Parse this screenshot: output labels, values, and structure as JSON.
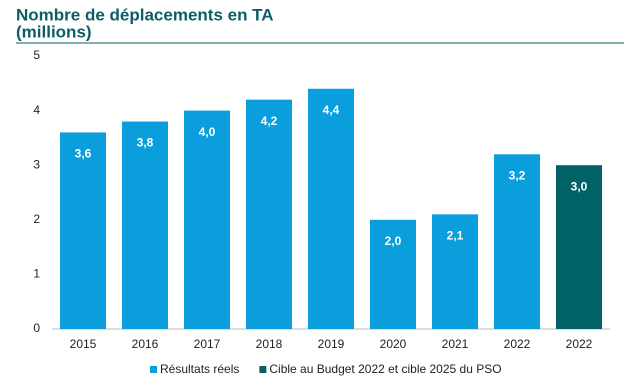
{
  "chart_data": {
    "type": "bar",
    "title": [
      "Nombre de déplacements en TA",
      "(millions)"
    ],
    "categories": [
      "2015",
      "2016",
      "2017",
      "2018",
      "2019",
      "2020",
      "2021",
      "2022",
      "2022"
    ],
    "series": [
      {
        "name": "Résultats réels",
        "color": "#0a9fdc",
        "values": [
          3.6,
          3.8,
          4.0,
          4.2,
          4.4,
          2.0,
          2.1,
          3.2,
          null
        ],
        "value_labels": [
          "3,6",
          "3,8",
          "4,0",
          "4,2",
          "4,4",
          "2,0",
          "2,1",
          "3,2",
          null
        ]
      },
      {
        "name": "Cible au Budget 2022 et cible 2025 du PSO",
        "color": "#006266",
        "values": [
          null,
          null,
          null,
          null,
          null,
          null,
          null,
          null,
          3.0
        ],
        "value_labels": [
          null,
          null,
          null,
          null,
          null,
          null,
          null,
          null,
          "3,0"
        ]
      }
    ],
    "ylim": [
      0,
      5
    ],
    "yticks": [
      0,
      1,
      2,
      3,
      4,
      5
    ],
    "grid": false
  }
}
